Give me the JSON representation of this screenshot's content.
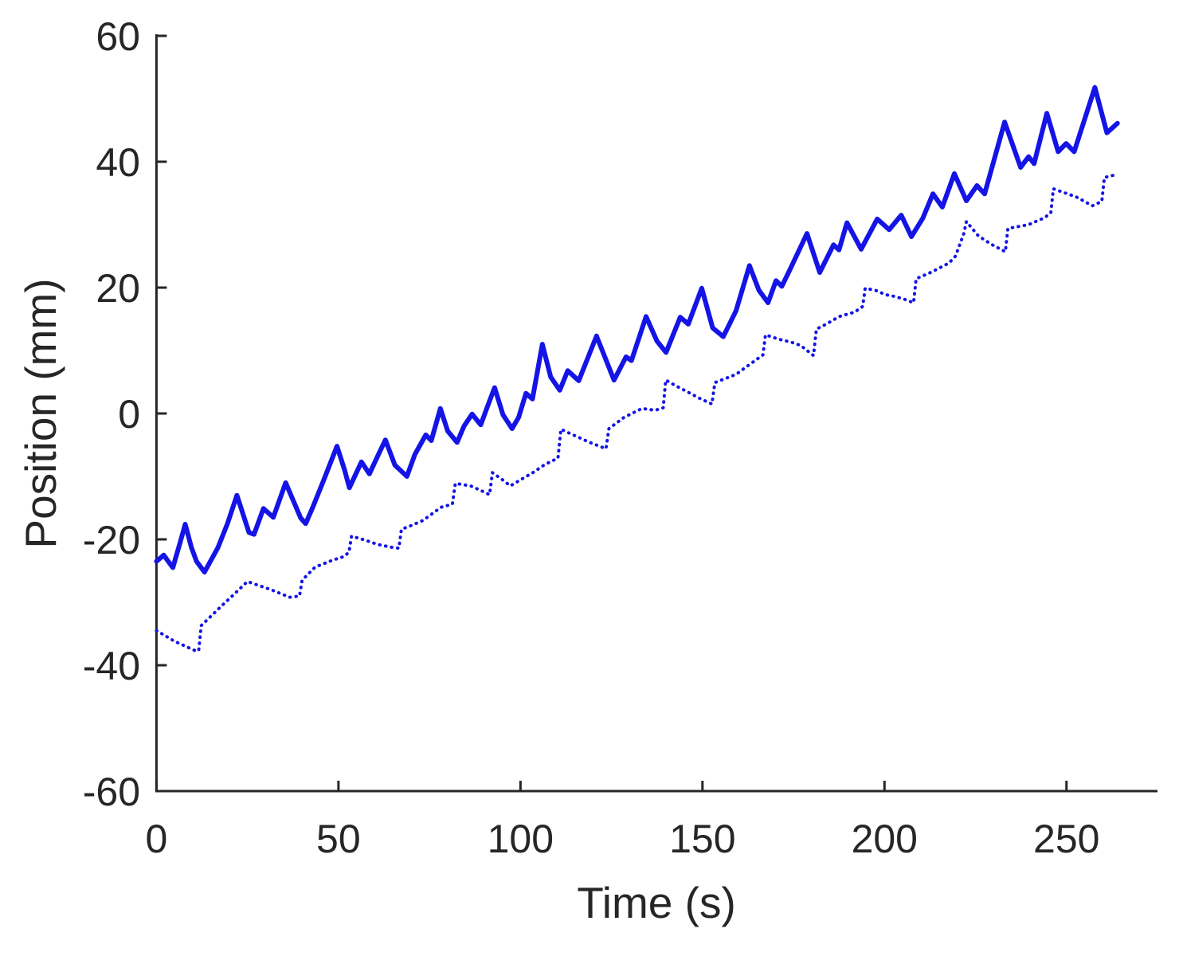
{
  "figure": {
    "background": "#ffffff",
    "axis_color": "#262626",
    "line_color": "#1414e6"
  },
  "chart_data": {
    "type": "line",
    "title": "",
    "xlabel": "Time (s)",
    "ylabel": "Position (mm)",
    "xlim": [
      0,
      275
    ],
    "ylim": [
      -60,
      60
    ],
    "x_ticks": [
      0,
      50,
      100,
      150,
      200,
      250
    ],
    "y_ticks": [
      -60,
      -40,
      -20,
      0,
      20,
      40,
      60
    ],
    "grid": false,
    "legend": "none",
    "box": false,
    "tick_direction": "in",
    "series": [
      {
        "name": "solid-position-trace",
        "style": "solid",
        "color": "#1414e6",
        "stroke_width": 6,
        "points": [
          [
            0,
            -23.5
          ],
          [
            2,
            -22.5
          ],
          [
            4.5,
            -24.5
          ],
          [
            6.5,
            -20.5
          ],
          [
            7.9,
            -17.6
          ],
          [
            9.6,
            -21.3
          ],
          [
            11,
            -23.5
          ],
          [
            13.2,
            -25.2
          ],
          [
            16.9,
            -21.3
          ],
          [
            19.5,
            -17.5
          ],
          [
            22.1,
            -13.0
          ],
          [
            25.4,
            -18.9
          ],
          [
            26.8,
            -19.2
          ],
          [
            29.4,
            -15.1
          ],
          [
            32.1,
            -16.5
          ],
          [
            35.5,
            -11.0
          ],
          [
            39.6,
            -16.6
          ],
          [
            41,
            -17.5
          ],
          [
            43.1,
            -14.7
          ],
          [
            46,
            -10.5
          ],
          [
            49.6,
            -5.2
          ],
          [
            51.7,
            -9.0
          ],
          [
            53,
            -11.8
          ],
          [
            56.3,
            -7.7
          ],
          [
            58.5,
            -9.6
          ],
          [
            61,
            -6.5
          ],
          [
            62.9,
            -4.2
          ],
          [
            65.5,
            -8.2
          ],
          [
            68.8,
            -10.0
          ],
          [
            71,
            -6.5
          ],
          [
            74,
            -3.4
          ],
          [
            75.5,
            -4.3
          ],
          [
            78,
            0.8
          ],
          [
            80,
            -2.8
          ],
          [
            82.6,
            -4.6
          ],
          [
            84.5,
            -2.0
          ],
          [
            86.7,
            -0.1
          ],
          [
            89.1,
            -1.8
          ],
          [
            91,
            1.2
          ],
          [
            92.9,
            4.1
          ],
          [
            95.2,
            -0.2
          ],
          [
            97.7,
            -2.4
          ],
          [
            99.5,
            -0.6
          ],
          [
            101.5,
            3.2
          ],
          [
            103.3,
            2.3
          ],
          [
            106,
            11.0
          ],
          [
            108.3,
            5.8
          ],
          [
            110.8,
            3.7
          ],
          [
            113,
            6.8
          ],
          [
            116,
            5.2
          ],
          [
            120.9,
            12.3
          ],
          [
            125.7,
            5.3
          ],
          [
            129,
            9.0
          ],
          [
            130.5,
            8.4
          ],
          [
            134.5,
            15.4
          ],
          [
            137.5,
            11.5
          ],
          [
            140,
            9.7
          ],
          [
            143.9,
            15.3
          ],
          [
            146.1,
            14.2
          ],
          [
            149.8,
            19.9
          ],
          [
            152.8,
            13.6
          ],
          [
            155.7,
            12.2
          ],
          [
            159.2,
            16.3
          ],
          [
            162.9,
            23.5
          ],
          [
            165.5,
            19.6
          ],
          [
            168,
            17.6
          ],
          [
            170.2,
            21.1
          ],
          [
            171.8,
            20.2
          ],
          [
            173.9,
            22.7
          ],
          [
            178.7,
            28.6
          ],
          [
            182.2,
            22.4
          ],
          [
            186,
            26.8
          ],
          [
            187.5,
            26.0
          ],
          [
            189.7,
            30.3
          ],
          [
            193.6,
            26.1
          ],
          [
            198,
            30.9
          ],
          [
            201.3,
            29.2
          ],
          [
            204.6,
            31.5
          ],
          [
            207.4,
            28.1
          ],
          [
            210.5,
            31.0
          ],
          [
            213.3,
            34.9
          ],
          [
            215.9,
            32.8
          ],
          [
            219.2,
            38.1
          ],
          [
            222.5,
            33.8
          ],
          [
            225.4,
            36.2
          ],
          [
            227.5,
            34.9
          ],
          [
            233,
            46.3
          ],
          [
            237.4,
            39.1
          ],
          [
            239.6,
            40.8
          ],
          [
            241.1,
            39.7
          ],
          [
            244.6,
            47.7
          ],
          [
            247.7,
            41.6
          ],
          [
            249.9,
            42.9
          ],
          [
            252.1,
            41.6
          ],
          [
            257.8,
            51.8
          ],
          [
            261.1,
            44.6
          ],
          [
            264,
            46.1
          ]
        ]
      },
      {
        "name": "dotted-position-trace",
        "style": "dotted",
        "color": "#1414e6",
        "stroke_width": 4,
        "points": [
          [
            0,
            -34.5
          ],
          [
            5,
            -36.2
          ],
          [
            10.7,
            -37.7
          ],
          [
            11.6,
            -37.7
          ],
          [
            12.3,
            -33.7
          ],
          [
            15,
            -32.2
          ],
          [
            18,
            -30.5
          ],
          [
            21,
            -28.9
          ],
          [
            25,
            -26.7
          ],
          [
            28,
            -27.3
          ],
          [
            31.5,
            -28.0
          ],
          [
            36.6,
            -29.2
          ],
          [
            39.3,
            -29.0
          ],
          [
            40,
            -26.5
          ],
          [
            43.6,
            -24.4
          ],
          [
            48.4,
            -23.3
          ],
          [
            51.7,
            -22.7
          ],
          [
            52.9,
            -22.0
          ],
          [
            53.6,
            -19.5
          ],
          [
            57.2,
            -20.1
          ],
          [
            60.7,
            -20.8
          ],
          [
            65,
            -21.3
          ],
          [
            66.6,
            -21.4
          ],
          [
            67.3,
            -18.4
          ],
          [
            70,
            -17.8
          ],
          [
            73.2,
            -17.0
          ],
          [
            78.2,
            -14.9
          ],
          [
            81.3,
            -14.4
          ],
          [
            82.1,
            -11.1
          ],
          [
            86.3,
            -11.5
          ],
          [
            89,
            -12.2
          ],
          [
            91.5,
            -12.9
          ],
          [
            92.3,
            -9.4
          ],
          [
            95,
            -10.5
          ],
          [
            97.2,
            -11.5
          ],
          [
            100.1,
            -10.5
          ],
          [
            103.4,
            -9.4
          ],
          [
            106.7,
            -8.1
          ],
          [
            110.3,
            -7.1
          ],
          [
            111.1,
            -2.5
          ],
          [
            114.8,
            -3.5
          ],
          [
            119,
            -4.6
          ],
          [
            123.5,
            -5.6
          ],
          [
            124.3,
            -2.4
          ],
          [
            128.5,
            -0.6
          ],
          [
            133.4,
            0.8
          ],
          [
            137,
            0.5
          ],
          [
            139.2,
            0.9
          ],
          [
            139.9,
            5.3
          ],
          [
            143,
            4.3
          ],
          [
            146,
            3.4
          ],
          [
            149.2,
            2.4
          ],
          [
            152.6,
            1.5
          ],
          [
            153.4,
            4.9
          ],
          [
            156,
            5.5
          ],
          [
            159.2,
            6.2
          ],
          [
            162.5,
            7.6
          ],
          [
            166.6,
            9.3
          ],
          [
            167.3,
            12.5
          ],
          [
            171,
            11.8
          ],
          [
            174.5,
            11.3
          ],
          [
            177,
            10.8
          ],
          [
            180.5,
            9.2
          ],
          [
            181.3,
            13.4
          ],
          [
            183.7,
            14.1
          ],
          [
            187.6,
            15.4
          ],
          [
            191.8,
            16.1
          ],
          [
            194,
            17.0
          ],
          [
            194.7,
            19.9
          ],
          [
            197.9,
            19.5
          ],
          [
            200.1,
            18.9
          ],
          [
            202.8,
            18.6
          ],
          [
            205.2,
            18.2
          ],
          [
            208,
            17.6
          ],
          [
            208.7,
            21.4
          ],
          [
            212.7,
            22.4
          ],
          [
            217.7,
            23.9
          ],
          [
            219.5,
            25.0
          ],
          [
            221.8,
            28.6
          ],
          [
            222.5,
            30.5
          ],
          [
            225.8,
            28.2
          ],
          [
            229.3,
            26.9
          ],
          [
            233.2,
            25.7
          ],
          [
            233.9,
            29.4
          ],
          [
            239.6,
            30.0
          ],
          [
            244,
            31.1
          ],
          [
            245.7,
            31.9
          ],
          [
            246.4,
            35.7
          ],
          [
            252.7,
            34.4
          ],
          [
            257.1,
            33.0
          ],
          [
            259.7,
            33.7
          ],
          [
            260.4,
            37.5
          ],
          [
            264,
            38.0
          ]
        ]
      }
    ]
  }
}
